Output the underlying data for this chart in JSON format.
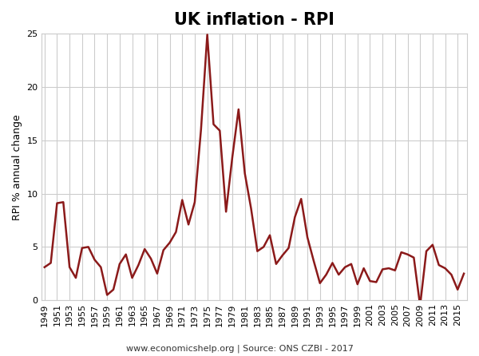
{
  "title": "UK inflation - RPI",
  "ylabel": "RPI % annual change",
  "footnote": "www.economicshelp.org | Source: ONS CZBI - 2017",
  "line_color": "#8B1A1A",
  "background_color": "#ffffff",
  "years": [
    1949,
    1950,
    1951,
    1952,
    1953,
    1954,
    1955,
    1956,
    1957,
    1958,
    1959,
    1960,
    1961,
    1962,
    1963,
    1964,
    1965,
    1966,
    1967,
    1968,
    1969,
    1970,
    1971,
    1972,
    1973,
    1974,
    1975,
    1976,
    1977,
    1978,
    1979,
    1980,
    1981,
    1982,
    1983,
    1984,
    1985,
    1986,
    1987,
    1988,
    1989,
    1990,
    1991,
    1992,
    1993,
    1994,
    1995,
    1996,
    1997,
    1998,
    1999,
    2000,
    2001,
    2002,
    2003,
    2004,
    2005,
    2006,
    2007,
    2008,
    2009,
    2010,
    2011,
    2012,
    2013,
    2014,
    2015,
    2016
  ],
  "values": [
    3.1,
    3.5,
    9.1,
    9.2,
    3.1,
    2.1,
    4.9,
    5.0,
    3.8,
    3.1,
    0.5,
    1.0,
    3.4,
    4.3,
    2.1,
    3.3,
    4.8,
    3.9,
    2.5,
    4.7,
    5.4,
    6.4,
    9.4,
    7.1,
    9.2,
    16.0,
    24.9,
    16.5,
    15.9,
    8.3,
    13.4,
    17.9,
    11.9,
    8.6,
    4.6,
    5.0,
    6.1,
    3.4,
    4.2,
    4.9,
    7.8,
    9.5,
    5.9,
    3.7,
    1.6,
    2.4,
    3.5,
    2.4,
    3.1,
    3.4,
    1.5,
    3.0,
    1.8,
    1.7,
    2.9,
    3.0,
    2.8,
    4.5,
    4.3,
    4.0,
    -0.5,
    4.6,
    5.2,
    3.3,
    3.0,
    2.4,
    1.0,
    2.5
  ],
  "xlim": [
    1948.5,
    2016.5
  ],
  "ylim": [
    0,
    25
  ],
  "yticks": [
    0,
    5,
    10,
    15,
    20,
    25
  ],
  "xtick_start": 1949,
  "xtick_end": 2016,
  "xtick_step": 2,
  "grid_color": "#cccccc",
  "grid_linewidth": 0.8,
  "line_linewidth": 1.8,
  "title_fontsize": 15,
  "ylabel_fontsize": 9,
  "tick_fontsize": 8,
  "footnote_fontsize": 8
}
